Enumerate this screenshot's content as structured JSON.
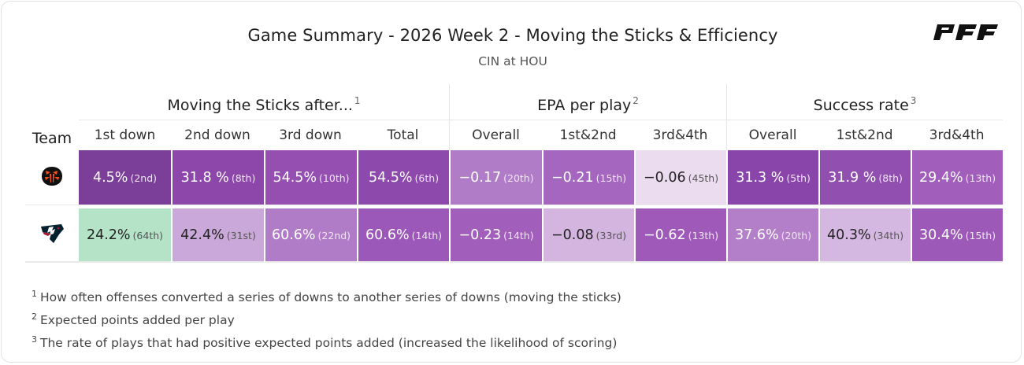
{
  "header": {
    "title": "Game Summary - 2026 Week 2 - Moving the Sticks & Efficiency",
    "subtitle": "CIN at HOU",
    "brand": "PFF"
  },
  "table": {
    "team_header": "Team",
    "groups": [
      {
        "label": "Moving the Sticks after...",
        "note": "1"
      },
      {
        "label": "EPA per play",
        "note": "2"
      },
      {
        "label": "Success rate",
        "note": "3"
      }
    ],
    "columns": [
      "1st down",
      "2nd down",
      "3rd down",
      "Total",
      "Overall",
      "1st&2nd",
      "3rd&4th",
      "Overall",
      "1st&2nd",
      "3rd&4th"
    ],
    "rows": [
      {
        "team": "CIN",
        "logo": "bengals-logo",
        "cells": [
          {
            "value": "4.5%",
            "rank": "(2nd)",
            "color": "#7b3f99"
          },
          {
            "value": "31.8 %",
            "rank": "(8th)",
            "color": "#8d47ab"
          },
          {
            "value": "54.5%",
            "rank": "(10th)",
            "color": "#944fb1"
          },
          {
            "value": "54.5%",
            "rank": "(6th)",
            "color": "#8e49ac"
          },
          {
            "value": "−0.17",
            "rank": "(20th)",
            "color": "#b07cc7"
          },
          {
            "value": "−0.21",
            "rank": "(15th)",
            "color": "#a466be"
          },
          {
            "value": "−0.06",
            "rank": "(45th)",
            "color": "#ebdcf0"
          },
          {
            "value": "31.3 %",
            "rank": "(5th)",
            "color": "#8a45aa"
          },
          {
            "value": "31.9 %",
            "rank": "(8th)",
            "color": "#9150b0"
          },
          {
            "value": "29.4%",
            "rank": "(13th)",
            "color": "#a15fbb"
          }
        ]
      },
      {
        "team": "HOU",
        "logo": "texans-logo",
        "cells": [
          {
            "value": "24.2%",
            "rank": "(64th)",
            "color": "#b4e3c8"
          },
          {
            "value": "42.4%",
            "rank": "(31st)",
            "color": "#cba8da"
          },
          {
            "value": "60.6%",
            "rank": "(22nd)",
            "color": "#b07bc7"
          },
          {
            "value": "60.6%",
            "rank": "(14th)",
            "color": "#9c58b8"
          },
          {
            "value": "−0.23",
            "rank": "(14th)",
            "color": "#a15eba"
          },
          {
            "value": "−0.08",
            "rank": "(33rd)",
            "color": "#d3b5e0"
          },
          {
            "value": "−0.62",
            "rank": "(13th)",
            "color": "#9f5ab9"
          },
          {
            "value": "37.6%",
            "rank": "(20th)",
            "color": "#b27fc8"
          },
          {
            "value": "40.3%",
            "rank": "(34th)",
            "color": "#d5b8e2"
          },
          {
            "value": "30.4%",
            "rank": "(15th)",
            "color": "#9d59b8"
          }
        ]
      }
    ]
  },
  "footnotes": [
    {
      "mark": "1",
      "text": "How often offenses converted a series of downs to another series of downs (moving the sticks)"
    },
    {
      "mark": "2",
      "text": "Expected points added per play"
    },
    {
      "mark": "3",
      "text": "The rate of plays that had positive expected points added (increased the likelihood of scoring)"
    }
  ]
}
